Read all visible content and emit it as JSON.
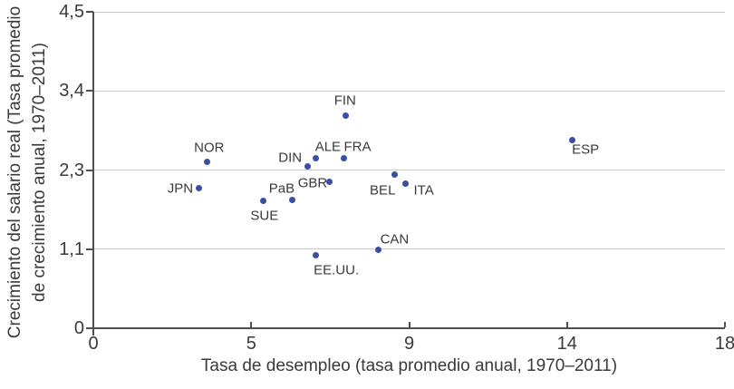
{
  "chart_data": {
    "type": "scatter",
    "title": "",
    "xlabel": "Tasa de desempleo (tasa promedio anual, 1970–2011)",
    "ylabel": [
      "Crecimiento del salario real (Tasa promedio",
      "de crecimiento anual, 1970–2011)"
    ],
    "xlim": [
      0,
      18
    ],
    "ylim": [
      0,
      4.5
    ],
    "grid": "horizontal",
    "legend": "none",
    "x_ticks": [
      {
        "value": 0,
        "label": "0"
      },
      {
        "value": 4.5,
        "label": "5"
      },
      {
        "value": 9,
        "label": "9"
      },
      {
        "value": 13.5,
        "label": "14"
      },
      {
        "value": 18,
        "label": "18"
      }
    ],
    "y_ticks": [
      {
        "value": 0,
        "label": "0"
      },
      {
        "value": 1.125,
        "label": "1,1"
      },
      {
        "value": 2.25,
        "label": "2,3"
      },
      {
        "value": 3.375,
        "label": "3,4"
      },
      {
        "value": 4.5,
        "label": "4,5"
      }
    ],
    "points": [
      {
        "label": "JPN",
        "x": 3.02,
        "y": 1.99,
        "label_offset": [
          -21,
          0
        ]
      },
      {
        "label": "NOR",
        "x": 3.25,
        "y": 2.36,
        "label_offset": [
          2,
          -16
        ]
      },
      {
        "label": "SUE",
        "x": 4.85,
        "y": 1.81,
        "label_offset": [
          1,
          16
        ]
      },
      {
        "label": "PaB",
        "x": 5.68,
        "y": 1.83,
        "label_offset": [
          -12,
          -12
        ]
      },
      {
        "label": "DIN",
        "x": 6.1,
        "y": 2.3,
        "label_offset": [
          -19,
          -10
        ]
      },
      {
        "label": "ALE",
        "x": 6.35,
        "y": 2.42,
        "label_offset": [
          13,
          -12
        ]
      },
      {
        "label": "GBR",
        "x": 6.74,
        "y": 2.08,
        "label_offset": [
          -19,
          1
        ]
      },
      {
        "label": "FRA",
        "x": 7.14,
        "y": 2.42,
        "label_offset": [
          15,
          -12
        ]
      },
      {
        "label": "FIN",
        "x": 7.2,
        "y": 3.02,
        "label_offset": [
          -1,
          -17
        ]
      },
      {
        "label": "EE.UU.",
        "x": 6.33,
        "y": 1.04,
        "label_offset": [
          23,
          17
        ]
      },
      {
        "label": "CAN",
        "x": 8.12,
        "y": 1.12,
        "label_offset": [
          18,
          -11
        ]
      },
      {
        "label": "BEL",
        "x": 8.58,
        "y": 2.18,
        "label_offset": [
          -13,
          17
        ]
      },
      {
        "label": "ITA",
        "x": 8.9,
        "y": 2.06,
        "label_offset": [
          20,
          8
        ]
      },
      {
        "label": "ESP",
        "x": 13.64,
        "y": 2.68,
        "label_offset": [
          15,
          11
        ]
      }
    ],
    "colors": {
      "point": "#3b4fa2",
      "grid": "#c9c9ca",
      "axis": "#4f4f51",
      "text": "#3a3a3c"
    }
  }
}
